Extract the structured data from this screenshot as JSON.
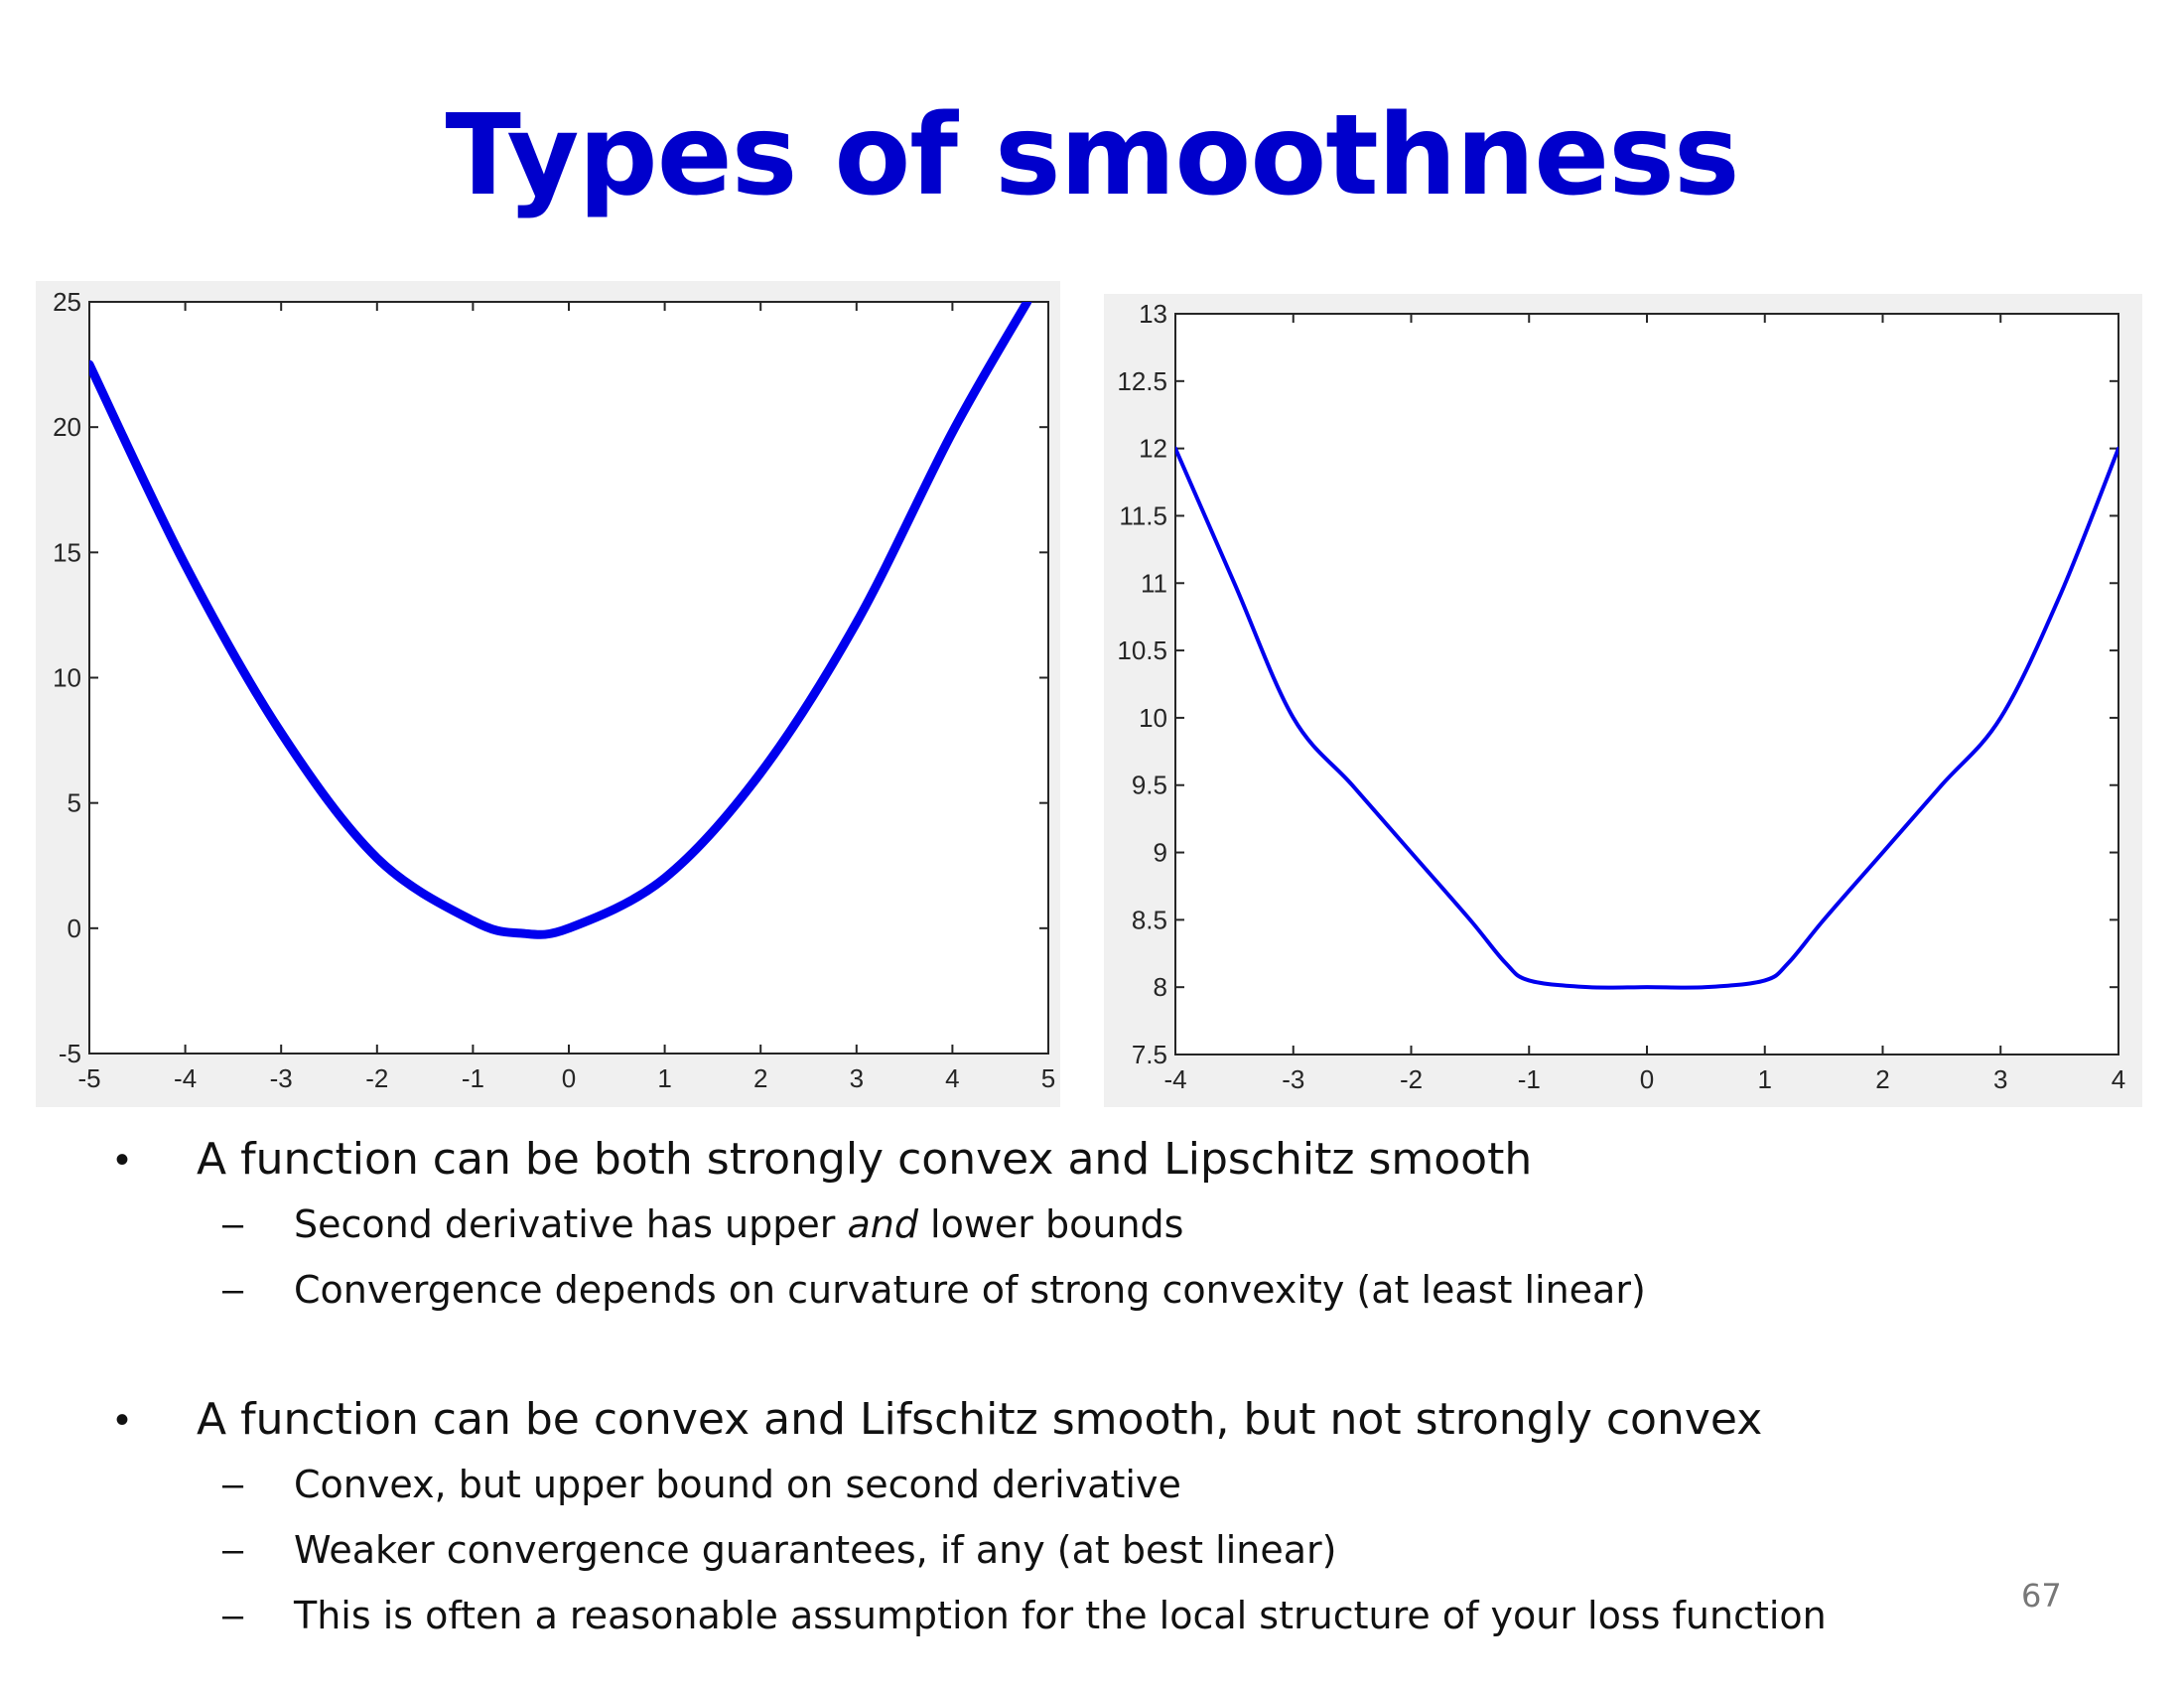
{
  "slide": {
    "title": "Types of smoothness",
    "page_number": "67"
  },
  "colors": {
    "title": "#0000cc",
    "curve": "#0000ee",
    "text": "#111111",
    "page_number": "#777777"
  },
  "chart_data": [
    {
      "type": "line",
      "title": "",
      "xlabel": "",
      "ylabel": "",
      "xlim": [
        -5,
        5
      ],
      "ylim": [
        -5,
        25
      ],
      "x_ticks": [
        -5,
        -4,
        -3,
        -2,
        -1,
        0,
        1,
        2,
        3,
        4,
        5
      ],
      "y_ticks": [
        -5,
        0,
        5,
        10,
        15,
        20,
        25
      ],
      "grid": false,
      "series": [
        {
          "color": "#0000ee",
          "x": [
            -5,
            -4,
            -3,
            -2,
            -1,
            -0.5,
            0,
            1,
            2,
            3,
            4,
            4.78
          ],
          "y": [
            22.5,
            14.5,
            7.8,
            2.8,
            0.3,
            -0.2,
            0,
            2,
            6.2,
            12.2,
            19.8,
            25
          ]
        }
      ]
    },
    {
      "type": "line",
      "title": "",
      "xlabel": "",
      "ylabel": "",
      "xlim": [
        -4,
        4
      ],
      "ylim": [
        7.5,
        13
      ],
      "x_ticks": [
        -4,
        -3,
        -2,
        -1,
        0,
        1,
        2,
        3,
        4
      ],
      "y_ticks": [
        7.5,
        8,
        8.5,
        9,
        9.5,
        10,
        10.5,
        11,
        11.5,
        12,
        12.5,
        13
      ],
      "y_tick_labels": [
        "7.5",
        "8",
        "8.5",
        "9",
        "9.5",
        "10",
        "10.5",
        "11",
        "11.5",
        "12",
        "12.5",
        "13"
      ],
      "grid": false,
      "series": [
        {
          "color": "#0000ee",
          "x": [
            -4,
            -3.5,
            -3,
            -2.5,
            -2,
            -1.5,
            -1.2,
            -1,
            -0.5,
            0,
            0.5,
            1,
            1.2,
            1.5,
            2,
            2.5,
            3,
            3.5,
            4
          ],
          "y": [
            12,
            11.0,
            10.0,
            9.5,
            9.0,
            8.5,
            8.18,
            8.05,
            8.0,
            8.0,
            8.0,
            8.05,
            8.18,
            8.5,
            9.0,
            9.5,
            10.0,
            10.9,
            12
          ]
        }
      ]
    }
  ],
  "bullets": [
    {
      "text": "A function can be both strongly convex and Lipschitz smooth",
      "subs": [
        {
          "before": "Second derivative has upper ",
          "emph": "and",
          "after": " lower bounds"
        },
        {
          "text": "Convergence depends on curvature of strong convexity (at least linear)"
        }
      ]
    },
    {
      "text": "A function can be convex and Lifschitz smooth, but not strongly convex",
      "subs": [
        {
          "text": "Convex, but upper bound on second derivative"
        },
        {
          "text": "Weaker convergence guarantees, if any (at best linear)"
        },
        {
          "text": "This is often a reasonable assumption for the local structure of your loss function"
        }
      ]
    }
  ]
}
